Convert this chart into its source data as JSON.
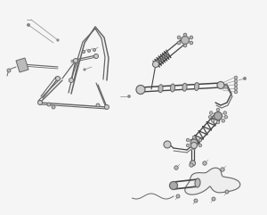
{
  "bg_color": "#f5f5f5",
  "line_color": "#666666",
  "dark_color": "#444444",
  "light_gray": "#bbbbbb",
  "medium_gray": "#888888",
  "figsize": [
    3.0,
    2.41
  ],
  "dpi": 100
}
